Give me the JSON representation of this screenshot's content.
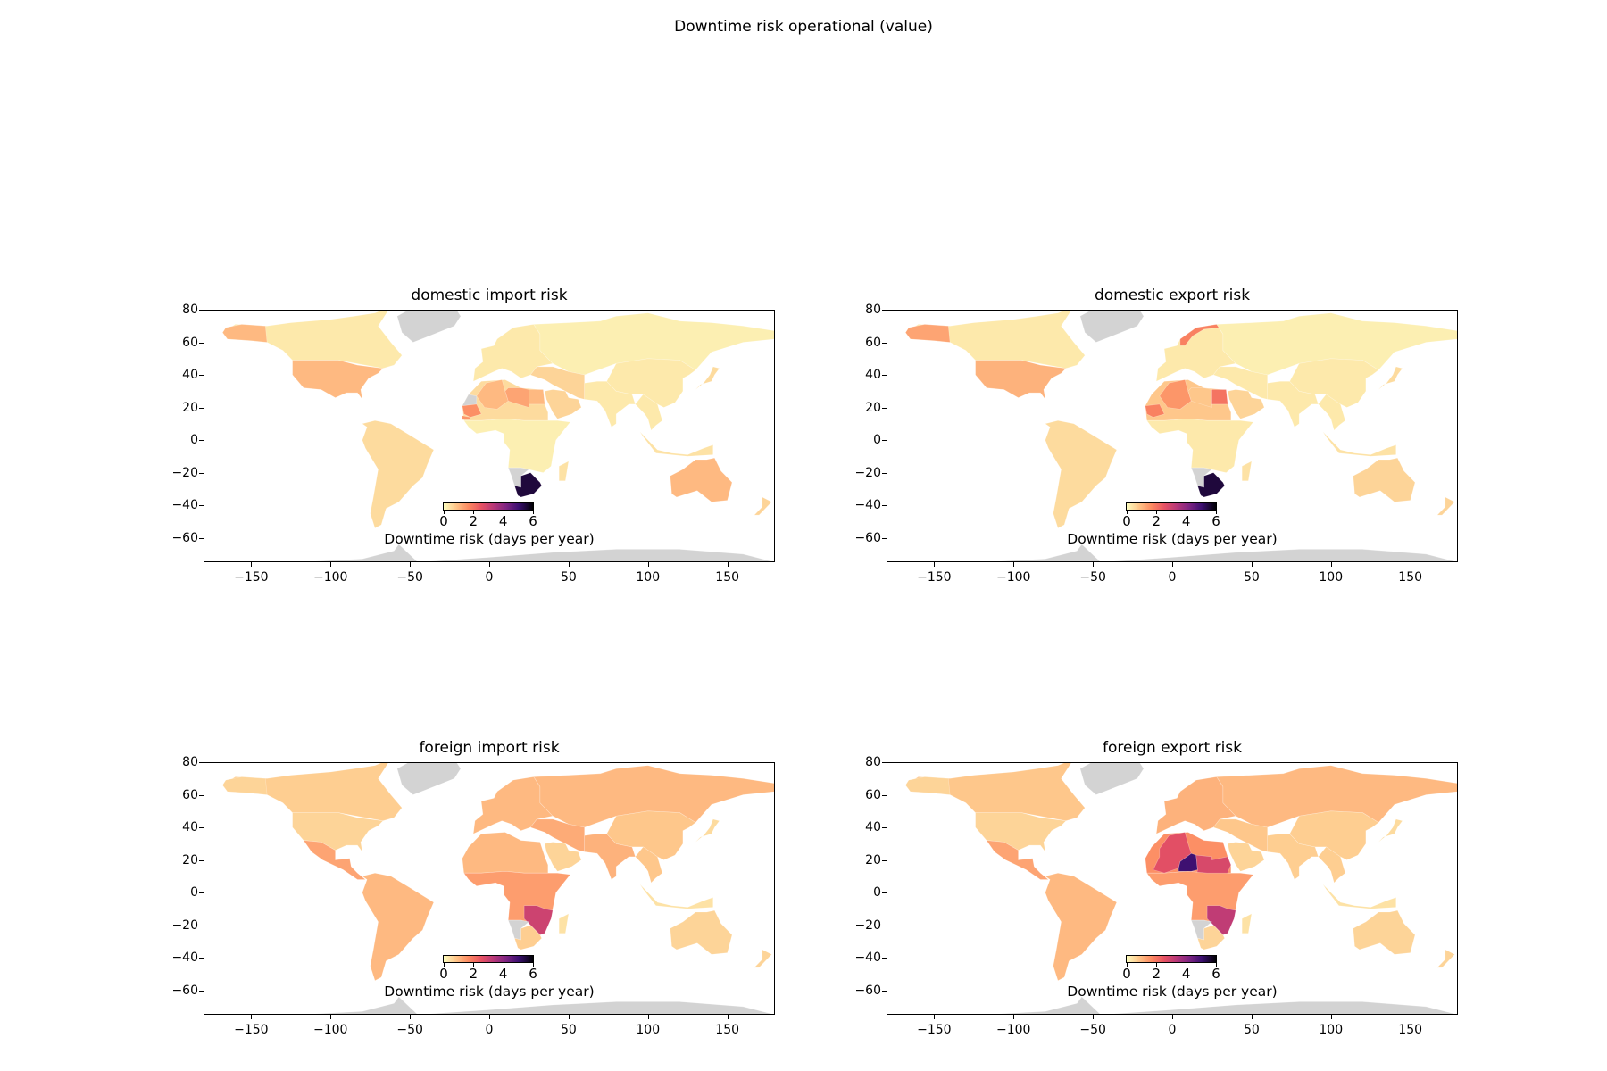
{
  "suptitle": "Downtime risk operational (value)",
  "colormap": "magma_r",
  "missing_color": "#d3d3d3",
  "chart_data": [
    {
      "type": "choropleth-map",
      "title": "domestic import risk",
      "xlim": [
        -180,
        180
      ],
      "ylim": [
        -75,
        80
      ],
      "xticks": [
        -150,
        -100,
        -50,
        0,
        50,
        100,
        150
      ],
      "yticks": [
        80,
        60,
        40,
        20,
        0,
        -20,
        -40,
        -60
      ],
      "colorbar": {
        "label": "Downtime risk (days per year)",
        "ticks": [
          0,
          2,
          4,
          6
        ],
        "range": [
          0,
          6
        ]
      },
      "regions": [
        {
          "name": "North America",
          "value": 0.3
        },
        {
          "name": "United States",
          "value": 1.0
        },
        {
          "name": "Alaska",
          "value": 1.0
        },
        {
          "name": "South America",
          "value": 0.5
        },
        {
          "name": "Europe",
          "value": 0.3
        },
        {
          "name": "Russia & Central Asia",
          "value": 0.2
        },
        {
          "name": "Middle East",
          "value": 0.6
        },
        {
          "name": "South Asia",
          "value": 0.3
        },
        {
          "name": "East Asia",
          "value": 0.3
        },
        {
          "name": "Southeast Asia",
          "value": 0.3
        },
        {
          "name": "Australia",
          "value": 1.0
        },
        {
          "name": "North Africa",
          "value": 0.5
        },
        {
          "name": "Mauritania",
          "value": 1.6
        },
        {
          "name": "Senegal",
          "value": 1.5
        },
        {
          "name": "Algeria",
          "value": 1.0
        },
        {
          "name": "Libya",
          "value": 1.3
        },
        {
          "name": "Egypt",
          "value": 1.0
        },
        {
          "name": "Central Africa",
          "value": 0.2
        },
        {
          "name": "South Africa",
          "value": 5.5
        },
        {
          "name": "Namibia",
          "value": null
        },
        {
          "name": "Greenland",
          "value": null
        },
        {
          "name": "Western Sahara",
          "value": null
        },
        {
          "name": "Antarctica",
          "value": null
        }
      ]
    },
    {
      "type": "choropleth-map",
      "title": "domestic export risk",
      "xlim": [
        -180,
        180
      ],
      "ylim": [
        -75,
        80
      ],
      "xticks": [
        -150,
        -100,
        -50,
        0,
        50,
        100,
        150
      ],
      "yticks": [
        80,
        60,
        40,
        20,
        0,
        -20,
        -40,
        -60
      ],
      "colorbar": {
        "label": "Downtime risk (days per year)",
        "ticks": [
          0,
          2,
          4,
          6
        ],
        "range": [
          0,
          6
        ]
      },
      "regions": [
        {
          "name": "North America",
          "value": 0.3
        },
        {
          "name": "United States",
          "value": 1.1
        },
        {
          "name": "Alaska",
          "value": 1.3
        },
        {
          "name": "South America",
          "value": 0.5
        },
        {
          "name": "Europe",
          "value": 0.3
        },
        {
          "name": "Norway",
          "value": 1.8
        },
        {
          "name": "Russia & Central Asia",
          "value": 0.2
        },
        {
          "name": "Middle East",
          "value": 0.3
        },
        {
          "name": "South Asia",
          "value": 0.3
        },
        {
          "name": "East Asia",
          "value": 0.3
        },
        {
          "name": "Southeast Asia",
          "value": 0.3
        },
        {
          "name": "Australia",
          "value": 0.6
        },
        {
          "name": "North Africa",
          "value": 0.8
        },
        {
          "name": "Mauritania",
          "value": 1.8
        },
        {
          "name": "Algeria",
          "value": 1.5
        },
        {
          "name": "Libya",
          "value": 0.8
        },
        {
          "name": "Egypt",
          "value": 2.0
        },
        {
          "name": "Central Africa",
          "value": 0.3
        },
        {
          "name": "South Africa",
          "value": 5.5
        },
        {
          "name": "Namibia",
          "value": null
        },
        {
          "name": "Greenland",
          "value": null
        },
        {
          "name": "Antarctica",
          "value": null
        }
      ]
    },
    {
      "type": "choropleth-map",
      "title": "foreign import risk",
      "xlim": [
        -180,
        180
      ],
      "ylim": [
        -75,
        80
      ],
      "xticks": [
        -150,
        -100,
        -50,
        0,
        50,
        100,
        150
      ],
      "yticks": [
        80,
        60,
        40,
        20,
        0,
        -20,
        -40,
        -60
      ],
      "colorbar": {
        "label": "Downtime risk (days per year)",
        "ticks": [
          0,
          2,
          4,
          6
        ],
        "range": [
          0,
          6
        ]
      },
      "regions": [
        {
          "name": "North America",
          "value": 0.7
        },
        {
          "name": "United States",
          "value": 0.6
        },
        {
          "name": "Alaska",
          "value": 0.6
        },
        {
          "name": "Mexico & Central America",
          "value": 1.3
        },
        {
          "name": "South America",
          "value": 1.0
        },
        {
          "name": "Europe",
          "value": 1.0
        },
        {
          "name": "Russia & Central Asia",
          "value": 1.0
        },
        {
          "name": "Middle East",
          "value": 1.2
        },
        {
          "name": "South Asia",
          "value": 1.1
        },
        {
          "name": "East Asia",
          "value": 0.8
        },
        {
          "name": "Southeast Asia",
          "value": 0.8
        },
        {
          "name": "Australia",
          "value": 0.6
        },
        {
          "name": "North Africa",
          "value": 1.0
        },
        {
          "name": "Central Africa",
          "value": 1.4
        },
        {
          "name": "Zambia & Mozambique",
          "value": 3.0
        },
        {
          "name": "South Africa",
          "value": 0.7
        },
        {
          "name": "Namibia",
          "value": null
        },
        {
          "name": "Greenland",
          "value": null
        },
        {
          "name": "Antarctica",
          "value": null
        }
      ]
    },
    {
      "type": "choropleth-map",
      "title": "foreign export risk",
      "xlim": [
        -180,
        180
      ],
      "ylim": [
        -75,
        80
      ],
      "xticks": [
        -150,
        -100,
        -50,
        0,
        50,
        100,
        150
      ],
      "yticks": [
        80,
        60,
        40,
        20,
        0,
        -20,
        -40,
        -60
      ],
      "colorbar": {
        "label": "Downtime risk (days per year)",
        "ticks": [
          0,
          2,
          4,
          6
        ],
        "range": [
          0,
          6
        ]
      },
      "regions": [
        {
          "name": "North America",
          "value": 0.8
        },
        {
          "name": "United States",
          "value": 0.6
        },
        {
          "name": "Alaska",
          "value": 0.6
        },
        {
          "name": "Mexico & Central America",
          "value": 1.3
        },
        {
          "name": "South America",
          "value": 1.0
        },
        {
          "name": "Europe",
          "value": 1.1
        },
        {
          "name": "Russia & Central Asia",
          "value": 1.0
        },
        {
          "name": "Middle East",
          "value": 0.8
        },
        {
          "name": "South Asia",
          "value": 0.7
        },
        {
          "name": "East Asia",
          "value": 0.7
        },
        {
          "name": "Southeast Asia",
          "value": 0.7
        },
        {
          "name": "Australia",
          "value": 0.6
        },
        {
          "name": "North Africa",
          "value": 1.6
        },
        {
          "name": "Algeria & Mali",
          "value": 2.6
        },
        {
          "name": "Niger",
          "value": 5.0
        },
        {
          "name": "Chad & Sudan",
          "value": 2.8
        },
        {
          "name": "Central Africa",
          "value": 1.4
        },
        {
          "name": "Zambia & Mozambique",
          "value": 3.2
        },
        {
          "name": "South Africa",
          "value": 0.6
        },
        {
          "name": "Namibia",
          "value": null
        },
        {
          "name": "Greenland",
          "value": null
        },
        {
          "name": "Antarctica",
          "value": null
        }
      ]
    }
  ]
}
